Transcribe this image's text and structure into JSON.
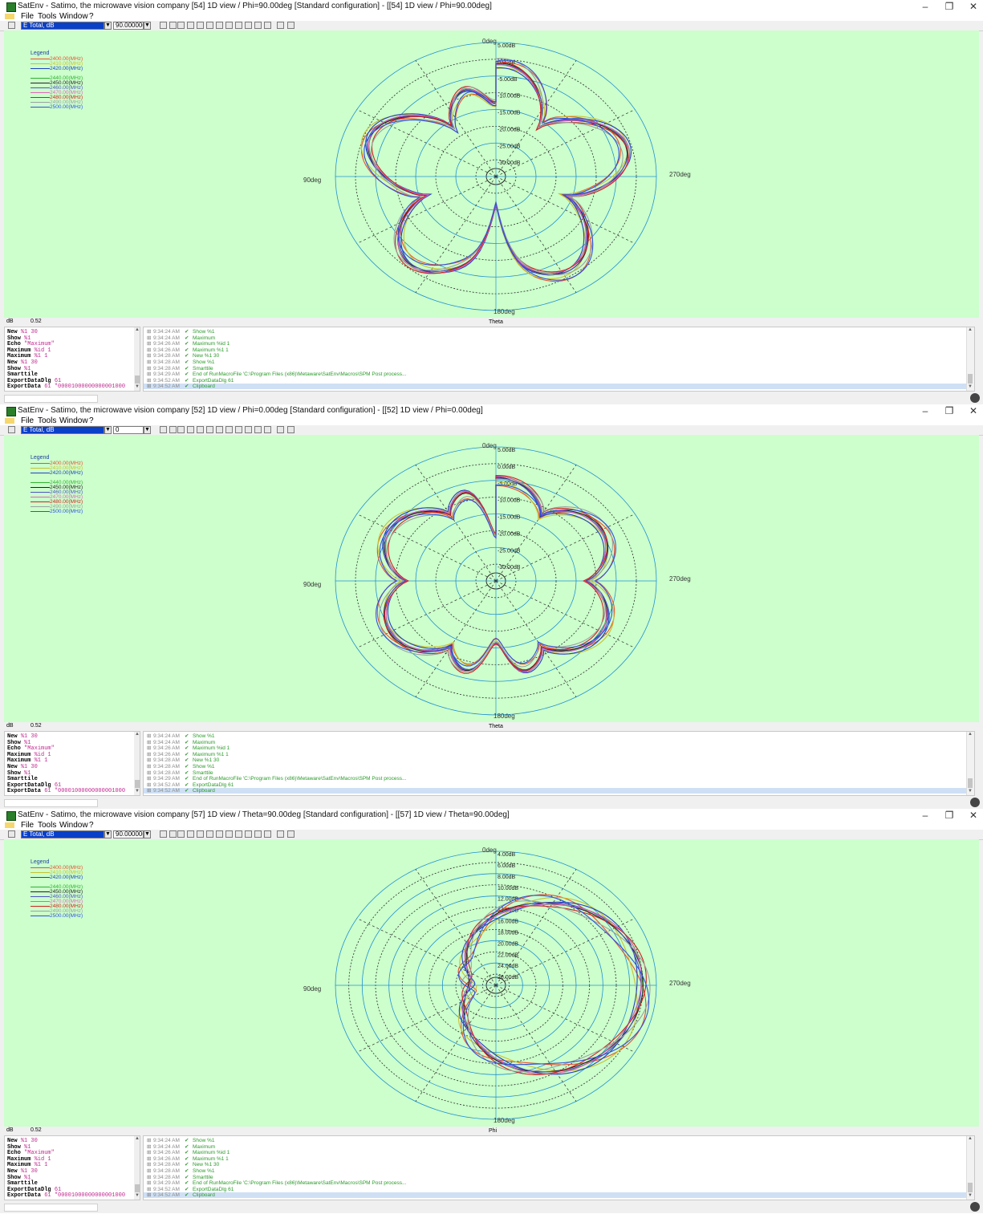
{
  "windows": [
    {
      "title": "SatEnv - Satimo, the microwave vision company [54] 1D view / Phi=90.00deg [Standard configuration] - [[54] 1D view / Phi=90.00deg]",
      "component_select": "E Total, dB",
      "angle_value": "90.0000000",
      "angle_has_dropdown": true,
      "axis": "Theta",
      "rings": [
        "5.00dB",
        "0.00dB",
        "-5.00dB",
        "-10.00dB",
        "-15.00dB",
        "-20.00dB",
        "-25.00dB",
        "-30.00dB"
      ]
    },
    {
      "title": "SatEnv - Satimo, the microwave vision company [52] 1D view / Phi=0.00deg [Standard configuration] - [[52] 1D view / Phi=0.00deg]",
      "component_select": "E Total, dB",
      "angle_value": "0",
      "angle_has_dropdown": true,
      "axis": "Theta",
      "rings": [
        "5.00dB",
        "0.00dB",
        "-5.00dB",
        "-10.00dB",
        "-15.00dB",
        "-20.00dB",
        "-25.00dB",
        "-30.00dB"
      ]
    },
    {
      "title": "SatEnv - Satimo, the microwave vision company [57] 1D view / Theta=90.00deg [Standard configuration] - [[57] 1D view / Theta=90.00deg]",
      "component_select": "E Total, dB",
      "angle_value": "90.0000000",
      "angle_has_dropdown": true,
      "axis": "Phi",
      "rings": [
        "4.00dB",
        "6.00dB",
        "8.00dB",
        "10.00dB",
        "12.00dB",
        "14.00dB",
        "16.00dB",
        "18.00dB",
        "20.00dB",
        "22.00dB",
        "24.00dB",
        "26.00dB"
      ]
    }
  ],
  "menu": {
    "file": "File",
    "tools": "Tools",
    "window": "Window",
    "help": "?"
  },
  "plot": {
    "legend_title": "Legend",
    "angle_labels": {
      "top": "0deg",
      "left": "90deg",
      "right": "270deg",
      "bottom": "180deg"
    },
    "unit": "dB",
    "status_value": "0.52",
    "background": "#ccffcc"
  },
  "legend": [
    {
      "label": "2400.00(MHz)",
      "color": "#e85030"
    },
    {
      "label": "2410.00(MHz)",
      "color": "#c8c030"
    },
    {
      "label": "2420.00(MHz)",
      "color": "#2040c0"
    },
    {
      "label": "2440.00(MHz)",
      "color": "#30b030"
    },
    {
      "label": "2450.00(MHz)",
      "color": "#202020"
    },
    {
      "label": "2460.00(MHz)",
      "color": "#5050c0"
    },
    {
      "label": "2470.00(MHz)",
      "color": "#e060c0"
    },
    {
      "label": "2480.00(MHz)",
      "color": "#d02020"
    },
    {
      "label": "2490.00(MHz)",
      "color": "#9aa0a0"
    },
    {
      "label": "2500.00(MHz)",
      "color": "#3050e0"
    }
  ],
  "console": [
    {
      "cmd": "New",
      "args": "%1 30"
    },
    {
      "cmd": "Show",
      "args": "%1"
    },
    {
      "cmd": "Echo",
      "args": "\"Maximum\""
    },
    {
      "cmd": "Maximum",
      "args": "%id 1"
    },
    {
      "cmd": "Maximum",
      "args": "%1 1"
    },
    {
      "cmd": "New",
      "args": "%1 30"
    },
    {
      "cmd": "Show",
      "args": "%1"
    },
    {
      "cmd": "Smarttile",
      "args": ""
    },
    {
      "cmd": "ExportDataDlg",
      "args": "61"
    },
    {
      "cmd": "ExportData",
      "args": "61 \"00001000000000001000"
    }
  ],
  "log": [
    {
      "time": "9:34:24 AM",
      "msg": "Show %1"
    },
    {
      "time": "9:34:24 AM",
      "msg": "Maximum"
    },
    {
      "time": "9:34:26 AM",
      "msg": "Maximum %id 1"
    },
    {
      "time": "9:34:26 AM",
      "msg": "Maximum %1 1"
    },
    {
      "time": "9:34:28 AM",
      "msg": "New %1 30"
    },
    {
      "time": "9:34:28 AM",
      "msg": "Show %1"
    },
    {
      "time": "9:34:28 AM",
      "msg": "Smarttile"
    },
    {
      "time": "9:34:29 AM",
      "msg": "End of RunMacroFile 'C:\\Program Files (x86)\\Metaware\\SatEnv\\Macros\\SPM Post process..."
    },
    {
      "time": "9:34:52 AM",
      "msg": "ExportDataDlg 61"
    },
    {
      "time": "9:34:52 AM",
      "msg": "Clipboard"
    }
  ]
}
